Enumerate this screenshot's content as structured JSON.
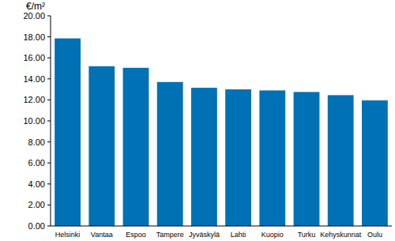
{
  "chart_data": {
    "type": "bar",
    "y_label": "€/m²",
    "categories": [
      "Helsinki",
      "Vantaa",
      "Espoo",
      "Tampere",
      "Jyväskylä",
      "Lahti",
      "Kuopio",
      "Turku",
      "Kehyskunnat",
      "Oulu"
    ],
    "values": [
      17.85,
      15.2,
      15.05,
      13.7,
      13.15,
      13.0,
      12.9,
      12.75,
      12.45,
      11.95
    ],
    "color": "#0071b5",
    "ylim": [
      0,
      20
    ],
    "yticks": [
      {
        "value": 0,
        "label": "0.00"
      },
      {
        "value": 2,
        "label": "2.00"
      },
      {
        "value": 4,
        "label": "4.00"
      },
      {
        "value": 6,
        "label": "6.00"
      },
      {
        "value": 8,
        "label": "8.00"
      },
      {
        "value": 10,
        "label": "10.00"
      },
      {
        "value": 12,
        "label": "12.00"
      },
      {
        "value": 14,
        "label": "14.00"
      },
      {
        "value": 16,
        "label": "16.00"
      },
      {
        "value": 18,
        "label": "18.00"
      },
      {
        "value": 20,
        "label": "20.00"
      }
    ],
    "grid": false
  }
}
